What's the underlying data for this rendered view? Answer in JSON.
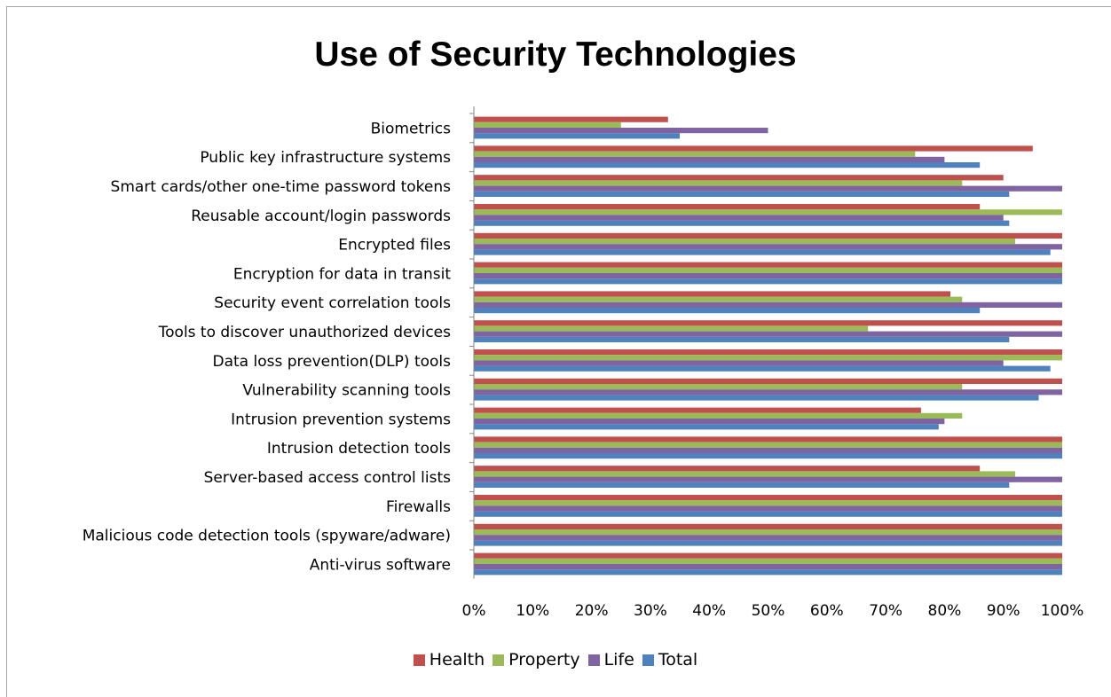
{
  "chart_data": {
    "type": "bar",
    "orientation": "horizontal",
    "title": "Use of Security Technologies",
    "xlabel": "",
    "ylabel": "",
    "xlim": [
      0,
      100
    ],
    "x_ticks": [
      "0%",
      "10%",
      "20%",
      "30%",
      "40%",
      "50%",
      "60%",
      "70%",
      "80%",
      "90%",
      "100%"
    ],
    "grid": false,
    "legend_position": "bottom",
    "categories": [
      "Biometrics",
      "Public key infrastructure systems",
      "Smart cards/other one-time password tokens",
      "Reusable account/login passwords",
      "Encrypted files",
      "Encryption for data in transit",
      "Security event correlation tools",
      "Tools to discover unauthorized devices",
      "Data loss prevention(DLP) tools",
      "Vulnerability scanning tools",
      "Intrusion prevention systems",
      "Intrusion detection tools",
      "Server-based access control lists",
      "Firewalls",
      "Malicious code detection tools (spyware/adware)",
      "Anti-virus software"
    ],
    "series": [
      {
        "name": "Health",
        "color": "#c0504d",
        "values": [
          33,
          95,
          90,
          86,
          100,
          100,
          81,
          100,
          100,
          100,
          76,
          100,
          86,
          100,
          100,
          100
        ]
      },
      {
        "name": "Property",
        "color": "#9bbb59",
        "values": [
          25,
          75,
          83,
          100,
          92,
          100,
          83,
          67,
          100,
          83,
          83,
          100,
          92,
          100,
          100,
          100
        ]
      },
      {
        "name": "Life",
        "color": "#8064a2",
        "values": [
          50,
          80,
          100,
          90,
          100,
          100,
          100,
          100,
          90,
          100,
          80,
          100,
          100,
          100,
          100,
          100
        ]
      },
      {
        "name": "Total",
        "color": "#4f81bd",
        "values": [
          35,
          86,
          91,
          91,
          98,
          100,
          86,
          91,
          98,
          96,
          79,
          100,
          91,
          100,
          100,
          100
        ]
      }
    ]
  }
}
